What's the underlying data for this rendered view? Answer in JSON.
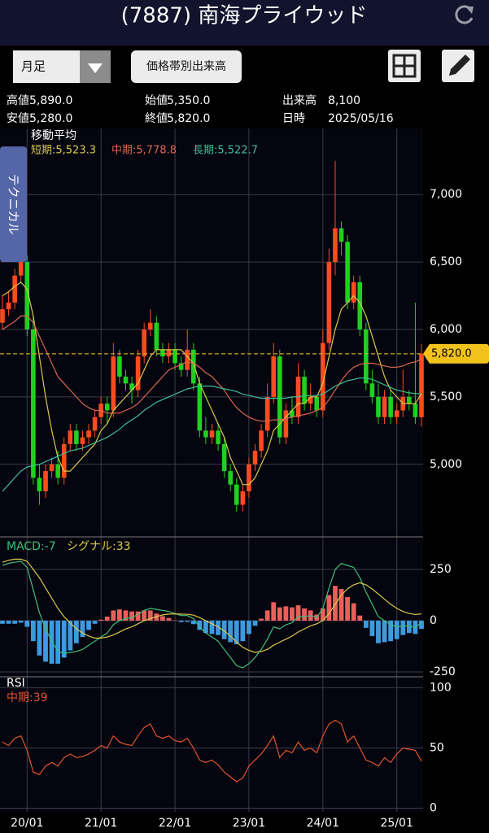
{
  "header": {
    "title": "(7887) 南海プライウッド"
  },
  "controls": {
    "period": "月足",
    "volume_profile": "価格帯別出来高"
  },
  "side_tab": "テクニカル",
  "info": [
    [
      "高値",
      "5,890.0"
    ],
    [
      "始値",
      "5,350.0"
    ],
    [
      "出来高",
      "8,100"
    ],
    [
      "安値",
      "5,280.0"
    ],
    [
      "終値",
      "5,820.0"
    ],
    [
      "日時",
      "2025/05/16"
    ]
  ],
  "chart_data": [
    {
      "type": "candlestick",
      "title": "移動平均",
      "categories": [
        null,
        null,
        null,
        null,
        "20/01",
        null,
        null,
        null,
        null,
        null,
        null,
        null,
        null,
        null,
        null,
        null,
        "21/01",
        null,
        null,
        null,
        null,
        null,
        null,
        null,
        null,
        null,
        null,
        null,
        "22/01",
        null,
        null,
        null,
        null,
        null,
        null,
        null,
        null,
        null,
        null,
        null,
        "23/01",
        null,
        null,
        null,
        null,
        null,
        null,
        null,
        null,
        null,
        null,
        null,
        "24/01",
        null,
        null,
        null,
        null,
        null,
        null,
        null,
        null,
        null,
        null,
        null,
        "25/01",
        null,
        null,
        null,
        null
      ],
      "open": [
        6050,
        6150,
        6200,
        6400,
        6500,
        6000,
        4900,
        4800,
        4950,
        5000,
        4900,
        5150,
        5250,
        5150,
        5200,
        5250,
        5350,
        5450,
        5400,
        5800,
        5650,
        5600,
        5550,
        5800,
        6000,
        6050,
        5850,
        5800,
        5850,
        5750,
        5700,
        5850,
        5600,
        5250,
        5200,
        5250,
        5150,
        4950,
        4850,
        4700,
        4800,
        5000,
        5100,
        5250,
        5500,
        5800,
        5200,
        5400,
        5350,
        5650,
        5450,
        5500,
        5400,
        5900,
        6500,
        6750,
        6650,
        6200,
        6350,
        6000,
        5600,
        5500,
        5350,
        5500,
        5350,
        5400,
        5500,
        5450,
        5350
      ],
      "high": [
        6250,
        6280,
        6450,
        6600,
        6550,
        6100,
        5000,
        5000,
        5050,
        5100,
        5200,
        5300,
        5300,
        5250,
        5300,
        5400,
        5500,
        5500,
        5900,
        5850,
        5700,
        5650,
        5850,
        6050,
        6150,
        6100,
        5900,
        5900,
        5900,
        5800,
        6000,
        5900,
        5650,
        5350,
        5300,
        5300,
        5200,
        5000,
        4900,
        4850,
        5050,
        5150,
        5300,
        5600,
        5900,
        5850,
        5450,
        5500,
        5750,
        5700,
        5600,
        5500,
        6000,
        6600,
        7250,
        6800,
        6700,
        6400,
        6400,
        6050,
        5700,
        5600,
        5550,
        5550,
        5450,
        5700,
        5550,
        6200,
        5890
      ],
      "low": [
        6000,
        6100,
        6150,
        6350,
        5950,
        4850,
        4700,
        4750,
        4900,
        4850,
        4850,
        5100,
        5100,
        5100,
        5150,
        5200,
        5300,
        5300,
        5350,
        5600,
        5550,
        5450,
        5500,
        5750,
        5950,
        5800,
        5750,
        5750,
        5700,
        5650,
        5650,
        5550,
        5200,
        5150,
        5150,
        5100,
        4900,
        4800,
        4650,
        4650,
        4750,
        4950,
        5050,
        5200,
        5450,
        5150,
        5150,
        5300,
        5300,
        5400,
        5400,
        5350,
        5350,
        5850,
        6400,
        6550,
        6150,
        6150,
        5950,
        5550,
        5450,
        5300,
        5300,
        5300,
        5300,
        5350,
        5400,
        5300,
        5280
      ],
      "close": [
        6150,
        6200,
        6400,
        6500,
        6000,
        4900,
        4800,
        4950,
        5000,
        4900,
        5150,
        5250,
        5150,
        5200,
        5250,
        5350,
        5450,
        5400,
        5800,
        5650,
        5600,
        5550,
        5800,
        6000,
        6050,
        5850,
        5800,
        5850,
        5750,
        5700,
        5850,
        5600,
        5250,
        5200,
        5250,
        5150,
        4950,
        4850,
        4700,
        4800,
        5000,
        5100,
        5250,
        5500,
        5800,
        5200,
        5400,
        5350,
        5650,
        5450,
        5500,
        5400,
        5900,
        6500,
        6750,
        6650,
        6200,
        6350,
        6000,
        5600,
        5500,
        5350,
        5500,
        5350,
        5400,
        5500,
        5450,
        5350,
        5820
      ],
      "up_color": "#ff4b1f",
      "down_color": "#1fd11f",
      "series": [
        {
          "name": "短期:5,523.3",
          "color": "#d9c94a",
          "values": [
            6250,
            6280,
            6320,
            6350,
            6300,
            6100,
            5800,
            5500,
            5250,
            5050,
            4950,
            4950,
            5000,
            5050,
            5100,
            5150,
            5250,
            5300,
            5400,
            5450,
            5500,
            5550,
            5600,
            5700,
            5800,
            5850,
            5850,
            5850,
            5850,
            5850,
            5800,
            5750,
            5600,
            5500,
            5400,
            5300,
            5200,
            5050,
            4950,
            4850,
            4850,
            4900,
            5000,
            5100,
            5250,
            5300,
            5350,
            5400,
            5450,
            5450,
            5500,
            5500,
            5600,
            5800,
            6000,
            6150,
            6200,
            6250,
            6200,
            6100,
            5950,
            5800,
            5650,
            5550,
            5500,
            5450,
            5450,
            5450,
            5523.3
          ]
        },
        {
          "name": "中期:5,778.8",
          "color": "#d9694f",
          "values": [
            6000,
            6030,
            6060,
            6100,
            6100,
            6050,
            5950,
            5850,
            5750,
            5650,
            5600,
            5550,
            5500,
            5450,
            5420,
            5400,
            5400,
            5380,
            5380,
            5380,
            5400,
            5420,
            5450,
            5500,
            5550,
            5600,
            5650,
            5700,
            5720,
            5740,
            5760,
            5750,
            5720,
            5680,
            5650,
            5600,
            5550,
            5480,
            5420,
            5380,
            5350,
            5330,
            5320,
            5320,
            5330,
            5330,
            5340,
            5350,
            5360,
            5370,
            5380,
            5400,
            5420,
            5480,
            5550,
            5620,
            5680,
            5720,
            5740,
            5750,
            5750,
            5740,
            5730,
            5720,
            5720,
            5730,
            5750,
            5760,
            5778.8
          ]
        },
        {
          "name": "長期:5,522.7",
          "color": "#3fbf98",
          "values": [
            4800,
            4850,
            4900,
            4950,
            4980,
            4990,
            5000,
            5020,
            5040,
            5060,
            5080,
            5100,
            5110,
            5120,
            5140,
            5160,
            5180,
            5200,
            5230,
            5260,
            5300,
            5330,
            5360,
            5400,
            5430,
            5460,
            5480,
            5500,
            5520,
            5540,
            5560,
            5570,
            5580,
            5580,
            5580,
            5570,
            5560,
            5550,
            5540,
            5520,
            5510,
            5500,
            5490,
            5490,
            5490,
            5490,
            5490,
            5500,
            5500,
            5510,
            5510,
            5510,
            5520,
            5550,
            5580,
            5600,
            5620,
            5630,
            5640,
            5640,
            5630,
            5610,
            5590,
            5570,
            5550,
            5540,
            5530,
            5525,
            5522.7
          ]
        }
      ],
      "last_price": 5820,
      "last_price_label": "5,820.0",
      "ylim": [
        4480,
        7490
      ],
      "yticks": [
        {
          "value": 5000,
          "label": "5,000"
        },
        {
          "value": 5500,
          "label": "5,500"
        },
        {
          "value": 6000,
          "label": "6,000"
        },
        {
          "value": 6500,
          "label": "6,500"
        },
        {
          "value": 7000,
          "label": "7,000"
        }
      ],
      "grid": true
    },
    {
      "type": "macd",
      "series": [
        {
          "name": "MACD:-7",
          "color": "#3fbf7a",
          "values": [
            270,
            280,
            285,
            290,
            260,
            150,
            40,
            -40,
            -100,
            -150,
            -160,
            -155,
            -150,
            -140,
            -120,
            -100,
            -80,
            -60,
            -20,
            0,
            10,
            15,
            30,
            50,
            60,
            55,
            50,
            45,
            35,
            25,
            25,
            10,
            -30,
            -60,
            -80,
            -100,
            -140,
            -180,
            -220,
            -230,
            -210,
            -180,
            -140,
            -90,
            -30,
            -40,
            -20,
            -10,
            20,
            20,
            25,
            15,
            60,
            160,
            250,
            280,
            270,
            260,
            210,
            140,
            80,
            20,
            0,
            -20,
            -30,
            -25,
            -25,
            -35,
            -7
          ]
        },
        {
          "name": "シグナル:33",
          "color": "#d9c94a",
          "values": [
            285,
            295,
            300,
            300,
            290,
            250,
            210,
            160,
            110,
            60,
            20,
            -10,
            -40,
            -60,
            -75,
            -85,
            -85,
            -80,
            -70,
            -55,
            -40,
            -30,
            -15,
            0,
            10,
            20,
            28,
            32,
            33,
            32,
            31,
            27,
            15,
            0,
            -15,
            -30,
            -50,
            -75,
            -105,
            -130,
            -145,
            -155,
            -150,
            -140,
            -120,
            -105,
            -90,
            -75,
            -55,
            -40,
            -25,
            -15,
            0,
            35,
            80,
            125,
            155,
            175,
            185,
            175,
            155,
            130,
            105,
            80,
            60,
            45,
            35,
            30,
            33
          ]
        }
      ],
      "histogram": {
        "pos_color": "#e8605a",
        "neg_color": "#3b9be0",
        "values": [
          -15,
          -15,
          -15,
          -10,
          -30,
          -100,
          -170,
          -200,
          -210,
          -210,
          -180,
          -145,
          -110,
          -80,
          -45,
          -15,
          5,
          20,
          50,
          55,
          50,
          45,
          45,
          50,
          50,
          35,
          22,
          13,
          2,
          -7,
          -6,
          -17,
          -45,
          -60,
          -65,
          -70,
          -90,
          -105,
          -115,
          -100,
          -65,
          -25,
          10,
          50,
          90,
          65,
          70,
          65,
          75,
          60,
          50,
          30,
          60,
          125,
          170,
          155,
          115,
          85,
          25,
          -35,
          -75,
          -110,
          -105,
          -100,
          -90,
          -70,
          -60,
          -65,
          -40
        ]
      },
      "ylim": [
        -266,
        397
      ],
      "yticks": [
        250,
        0,
        -250
      ],
      "grid": true
    },
    {
      "type": "rsi",
      "title": "RSI",
      "series": [
        {
          "name": "中期:39",
          "color": "#e0552e",
          "values": [
            55,
            52,
            58,
            60,
            48,
            30,
            28,
            35,
            38,
            35,
            42,
            45,
            42,
            43,
            45,
            48,
            52,
            50,
            60,
            55,
            53,
            52,
            60,
            67,
            70,
            60,
            58,
            60,
            56,
            55,
            58,
            50,
            40,
            38,
            40,
            36,
            30,
            26,
            22,
            25,
            35,
            40,
            45,
            52,
            60,
            42,
            48,
            46,
            55,
            48,
            50,
            46,
            60,
            70,
            73,
            70,
            55,
            60,
            50,
            40,
            38,
            35,
            42,
            38,
            45,
            50,
            49,
            48,
            39
          ]
        }
      ],
      "ylim": [
        -3,
        105
      ],
      "yticks": [
        100,
        50,
        0
      ],
      "grid": true
    }
  ]
}
